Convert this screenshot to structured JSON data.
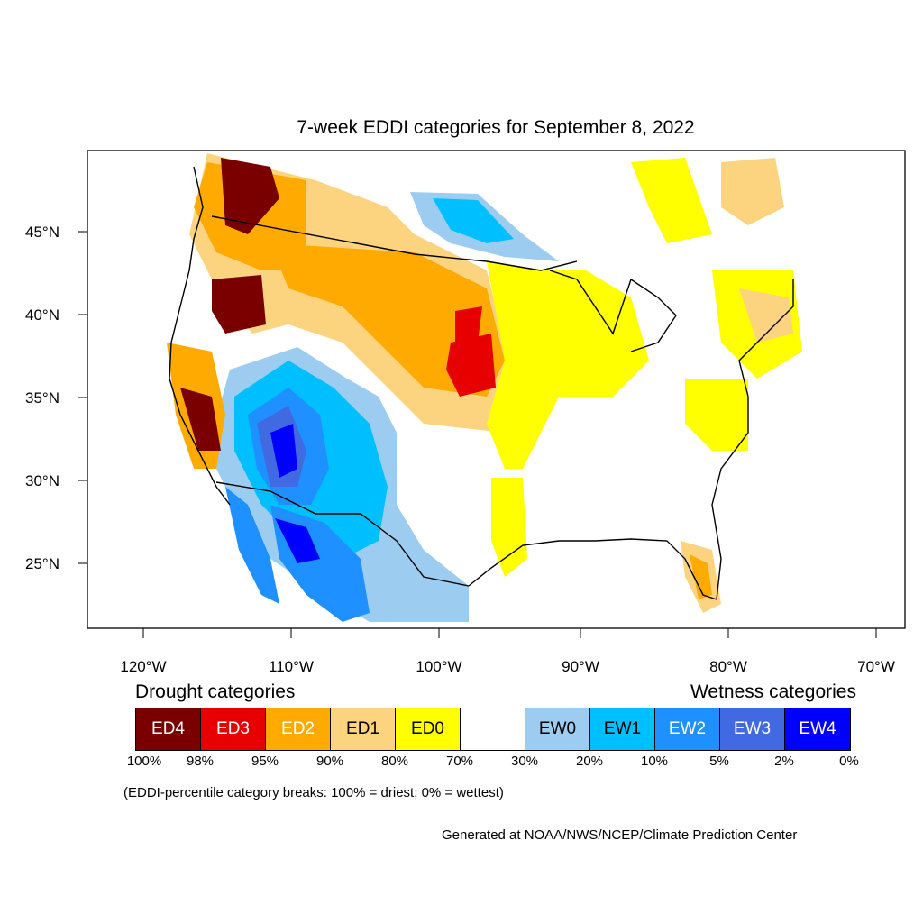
{
  "title": "7-week EDDI categories for September 8, 2022",
  "axes": {
    "lat_ticks": [
      "45°N",
      "40°N",
      "35°N",
      "30°N",
      "25°N"
    ],
    "lon_ticks": [
      "120°W",
      "110°W",
      "100°W",
      "90°W",
      "80°W",
      "70°W"
    ]
  },
  "legend": {
    "drought_heading": "Drought categories",
    "wetness_heading": "Wetness categories",
    "categories": [
      {
        "label": "ED4",
        "color": "#7a0000",
        "text_color": "#ffffff"
      },
      {
        "label": "ED3",
        "color": "#e60000",
        "text_color": "#ffffff"
      },
      {
        "label": "ED2",
        "color": "#ffaa00",
        "text_color": "#ffffff"
      },
      {
        "label": "ED1",
        "color": "#fcd37f",
        "text_color": "#000000"
      },
      {
        "label": "ED0",
        "color": "#ffff00",
        "text_color": "#000000"
      },
      {
        "label": "",
        "color": "#ffffff",
        "text_color": "#000000"
      },
      {
        "label": "EW0",
        "color": "#9ccdf0",
        "text_color": "#000000"
      },
      {
        "label": "EW1",
        "color": "#00bfff",
        "text_color": "#000000"
      },
      {
        "label": "EW2",
        "color": "#1e90ff",
        "text_color": "#ffffff"
      },
      {
        "label": "EW3",
        "color": "#4169e1",
        "text_color": "#ffffff"
      },
      {
        "label": "EW4",
        "color": "#0000ff",
        "text_color": "#ffffff"
      }
    ],
    "breaks": [
      "100%",
      "98%",
      "95%",
      "90%",
      "80%",
      "70%",
      "30%",
      "20%",
      "10%",
      "5%",
      "2%",
      "0%"
    ]
  },
  "note": "(EDDI-percentile category breaks: 100% = driest; 0% = wettest)",
  "credit": "Generated at NOAA/NWS/NCEP/Climate Prediction Center"
}
